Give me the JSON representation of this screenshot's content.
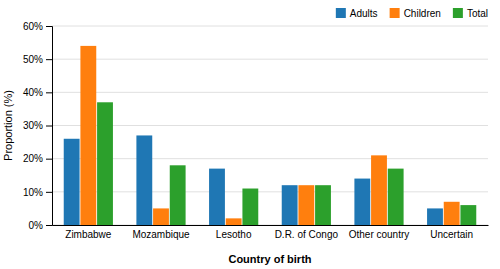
{
  "chart_data": {
    "type": "bar",
    "categories": [
      "Zimbabwe",
      "Mozambique",
      "Lesotho",
      "D.R. of Congo",
      "Other country",
      "Uncertain"
    ],
    "series": [
      {
        "name": "Adults",
        "values": [
          26,
          27,
          17,
          12,
          14,
          5
        ]
      },
      {
        "name": "Children",
        "values": [
          54,
          5,
          2,
          12,
          21,
          7
        ]
      },
      {
        "name": "Total",
        "values": [
          37,
          18,
          11,
          12,
          17,
          6
        ]
      }
    ],
    "xlabel": "Country of birth",
    "ylabel": "Proportion (%)",
    "ylim": [
      0,
      60
    ],
    "yticks": [
      {
        "value": 0,
        "label": "0%"
      },
      {
        "value": 10,
        "label": "10%"
      },
      {
        "value": 20,
        "label": "20%"
      },
      {
        "value": 30,
        "label": "30%"
      },
      {
        "value": 40,
        "label": "40%"
      },
      {
        "value": 50,
        "label": "50%"
      },
      {
        "value": 60,
        "label": "60%"
      }
    ],
    "grid": true,
    "legend": "top-right"
  }
}
